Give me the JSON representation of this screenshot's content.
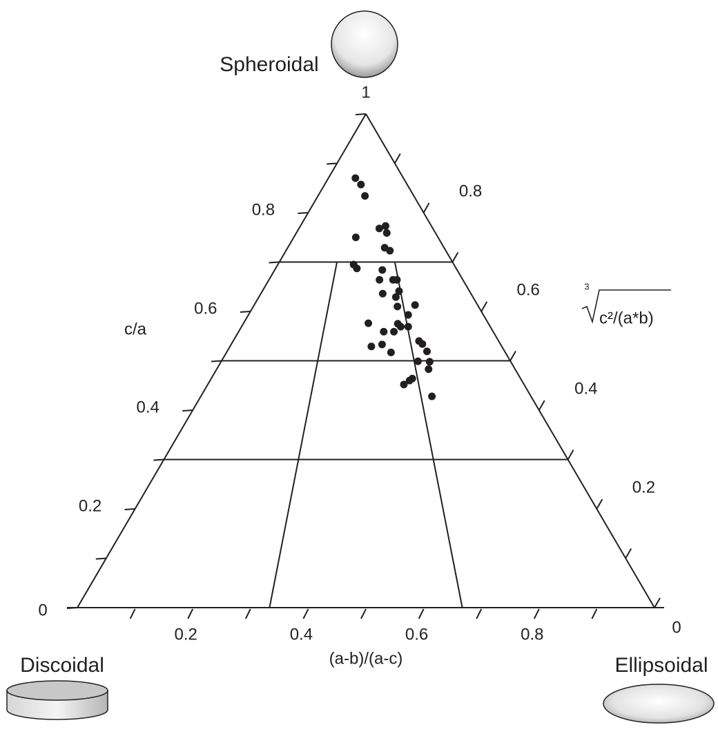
{
  "chart_data": {
    "type": "ternary",
    "apex_label": "Spheroidal",
    "left_label": "Discoidal",
    "right_label": "Ellipsoidal",
    "xlabel": "(a-b)/(a-c)",
    "ylabel": "c/a",
    "y2label": "c²/(a*b)",
    "y2label_root_index": "3",
    "xlim": [
      0,
      1
    ],
    "ylim": [
      0,
      1
    ],
    "y2lim": [
      0,
      1
    ],
    "xticks": [
      0.2,
      0.4,
      0.6,
      0.8
    ],
    "xminor_ticks": [
      0.1,
      0.3,
      0.5,
      0.7,
      0.9
    ],
    "yticks": [
      0,
      0.2,
      0.4,
      0.6,
      0.8,
      1
    ],
    "yminor_ticks": [
      0.1,
      0.3,
      0.5,
      0.7,
      0.9
    ],
    "y2ticks": [
      0,
      0.2,
      0.4,
      0.6,
      0.8
    ],
    "y2minor_ticks": [
      0.1,
      0.3,
      0.5,
      0.7,
      0.9
    ],
    "class_lines_y": [
      0.3,
      0.5,
      0.7
    ],
    "class_lines_x": [
      0.333,
      0.667
    ],
    "color": "#231f20",
    "x": [
      0.36,
      0.44,
      0.49,
      0.6,
      0.65,
      0.65,
      0.43,
      0.62,
      0.65,
      0.43,
      0.45,
      0.59,
      0.64,
      0.66,
      0.57,
      0.66,
      0.58,
      0.64,
      0.64,
      0.72,
      0.68,
      0.51,
      0.63,
      0.64,
      0.67,
      0.57,
      0.61,
      0.7,
      0.52,
      0.56,
      0.59,
      0.71,
      0.72,
      0.68,
      0.72,
      0.71,
      0.65,
      0.64,
      0.62,
      0.7
    ],
    "values": [
      0.87,
      0.857,
      0.834,
      0.768,
      0.773,
      0.759,
      0.75,
      0.729,
      0.723,
      0.695,
      0.687,
      0.684,
      0.664,
      0.664,
      0.664,
      0.641,
      0.636,
      0.629,
      0.61,
      0.613,
      0.593,
      0.576,
      0.575,
      0.569,
      0.569,
      0.559,
      0.559,
      0.54,
      0.529,
      0.533,
      0.517,
      0.534,
      0.519,
      0.499,
      0.498,
      0.483,
      0.464,
      0.46,
      0.452,
      0.428
    ]
  }
}
